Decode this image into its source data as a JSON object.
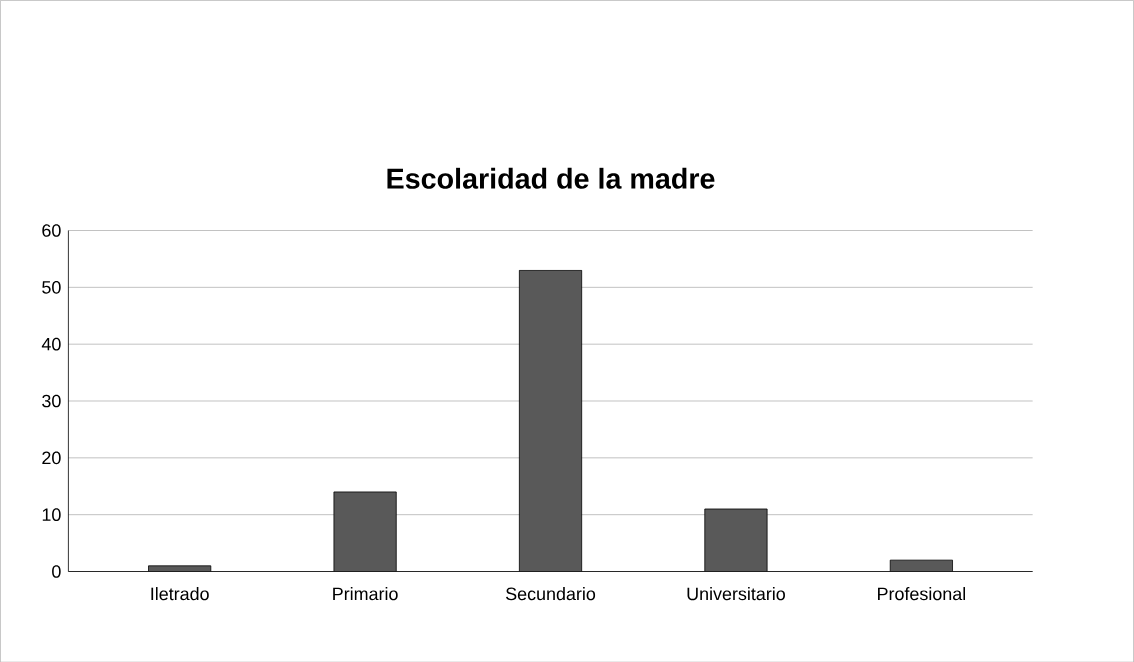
{
  "chart_data": {
    "type": "bar",
    "title": "Escolaridad de la madre",
    "categories": [
      "Iletrado",
      "Primario",
      "Secundario",
      "Universitario",
      "Profesional"
    ],
    "values": [
      1,
      14,
      53,
      11,
      2
    ],
    "color": "#595959",
    "ylim": [
      0,
      60
    ],
    "yticks": [
      0,
      10,
      20,
      30,
      40,
      50,
      60
    ],
    "grid": "y"
  }
}
